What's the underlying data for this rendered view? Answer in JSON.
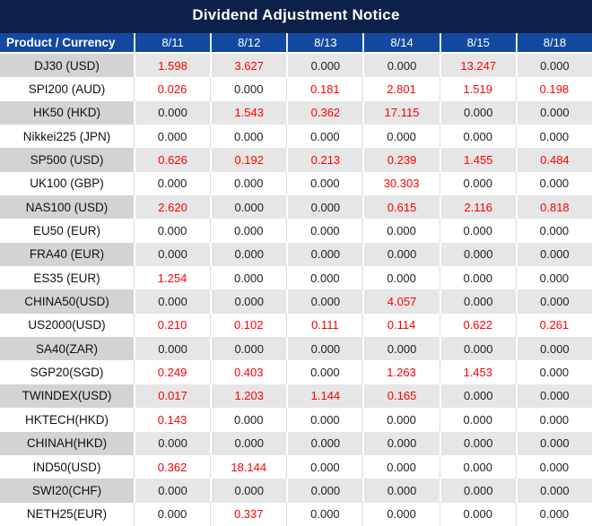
{
  "title": "Dividend Adjustment Notice",
  "chart_data": {
    "type": "table",
    "title": "Dividend Adjustment Notice",
    "columns": [
      "Product / Currency",
      "8/11",
      "8/12",
      "8/13",
      "8/14",
      "8/15",
      "8/18"
    ],
    "rows": [
      {
        "product": "DJ30 (USD)",
        "values": [
          "1.598",
          "3.627",
          "0.000",
          "0.000",
          "13.247",
          "0.000"
        ]
      },
      {
        "product": "SPI200 (AUD)",
        "values": [
          "0.026",
          "0.000",
          "0.181",
          "2.801",
          "1.519",
          "0.198"
        ]
      },
      {
        "product": "HK50 (HKD)",
        "values": [
          "0.000",
          "1.543",
          "0.362",
          "17.115",
          "0.000",
          "0.000"
        ]
      },
      {
        "product": "Nikkei225 (JPN)",
        "values": [
          "0.000",
          "0.000",
          "0.000",
          "0.000",
          "0.000",
          "0.000"
        ]
      },
      {
        "product": "SP500 (USD)",
        "values": [
          "0.626",
          "0.192",
          "0.213",
          "0.239",
          "1.455",
          "0.484"
        ]
      },
      {
        "product": "UK100 (GBP)",
        "values": [
          "0.000",
          "0.000",
          "0.000",
          "30.303",
          "0.000",
          "0.000"
        ]
      },
      {
        "product": "NAS100 (USD)",
        "values": [
          "2.620",
          "0.000",
          "0.000",
          "0.615",
          "2.116",
          "0.818"
        ]
      },
      {
        "product": "EU50 (EUR)",
        "values": [
          "0.000",
          "0.000",
          "0.000",
          "0.000",
          "0.000",
          "0.000"
        ]
      },
      {
        "product": "FRA40 (EUR)",
        "values": [
          "0.000",
          "0.000",
          "0.000",
          "0.000",
          "0.000",
          "0.000"
        ]
      },
      {
        "product": "ES35 (EUR)",
        "values": [
          "1.254",
          "0.000",
          "0.000",
          "0.000",
          "0.000",
          "0.000"
        ]
      },
      {
        "product": "CHINA50(USD)",
        "values": [
          "0.000",
          "0.000",
          "0.000",
          "4.057",
          "0.000",
          "0.000"
        ]
      },
      {
        "product": "US2000(USD)",
        "values": [
          "0.210",
          "0.102",
          "0.111",
          "0.114",
          "0.622",
          "0.261"
        ]
      },
      {
        "product": "SA40(ZAR)",
        "values": [
          "0.000",
          "0.000",
          "0.000",
          "0.000",
          "0.000",
          "0.000"
        ]
      },
      {
        "product": "SGP20(SGD)",
        "values": [
          "0.249",
          "0.403",
          "0.000",
          "1.263",
          "1.453",
          "0.000"
        ]
      },
      {
        "product": "TWINDEX(USD)",
        "values": [
          "0.017",
          "1.203",
          "1.144",
          "0.165",
          "0.000",
          "0.000"
        ]
      },
      {
        "product": "HKTECH(HKD)",
        "values": [
          "0.143",
          "0.000",
          "0.000",
          "0.000",
          "0.000",
          "0.000"
        ]
      },
      {
        "product": "CHINAH(HKD)",
        "values": [
          "0.000",
          "0.000",
          "0.000",
          "0.000",
          "0.000",
          "0.000"
        ]
      },
      {
        "product": "IND50(USD)",
        "values": [
          "0.362",
          "18.144",
          "0.000",
          "0.000",
          "0.000",
          "0.000"
        ]
      },
      {
        "product": "SWI20(CHF)",
        "values": [
          "0.000",
          "0.000",
          "0.000",
          "0.000",
          "0.000",
          "0.000"
        ]
      },
      {
        "product": "NETH25(EUR)",
        "values": [
          "0.000",
          "0.337",
          "0.000",
          "0.000",
          "0.000",
          "0.000"
        ]
      }
    ],
    "zero_value": "0.000",
    "highlight_rule": "non-zero values rendered in red",
    "legend_position": "none",
    "grid": "on"
  },
  "colors": {
    "title_bg": "#0C2049",
    "header_bg": "#13499F",
    "header_text": "#FFFFFF",
    "row_alt_bg": "#E6E6E6",
    "row_alt_product_bg": "#D3D3D3",
    "row_plain_bg": "#FFFFFF",
    "zero_text": "#212121",
    "nonzero_text": "#FE0000"
  }
}
